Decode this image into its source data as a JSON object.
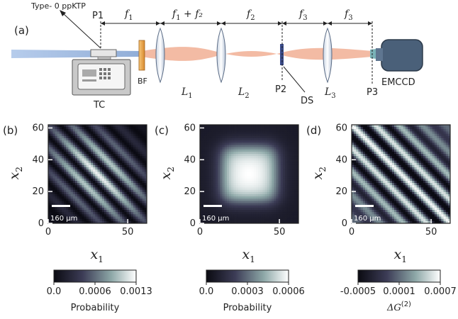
{
  "panel_a": {
    "tag": "(a)",
    "crystal_label": "Type- 0 ppKTP",
    "tc_label": "TC",
    "bf_label": "BF",
    "lens_labels": [
      "L",
      "L",
      "L"
    ],
    "lens_subs": [
      "1",
      "2",
      "3"
    ],
    "plane_labels": [
      "P1",
      "P2",
      "P3"
    ],
    "ds_label": "DS",
    "camera_label": "EMCCD",
    "distances": [
      {
        "main": "f",
        "sub": "1",
        "tail": ""
      },
      {
        "main": "f",
        "sub": "1",
        "tail": " + f₂"
      },
      {
        "main": "f",
        "sub": "2",
        "tail": ""
      },
      {
        "main": "f",
        "sub": "3",
        "tail": ""
      },
      {
        "main": "f",
        "sub": "3",
        "tail": ""
      }
    ],
    "colors": {
      "pump": "#8fb0dc",
      "spdc": "#f2b49a",
      "camera": "#4a6079",
      "filter": "#e8a24a"
    }
  },
  "panels": [
    {
      "tag": "(b)",
      "pattern": "anti",
      "xlabel": "x",
      "xlabel_sub": "1",
      "ylabel": "x",
      "ylabel_sub": "2",
      "xticks": [
        "0",
        "50"
      ],
      "yticks": [
        "0",
        "20",
        "40",
        "60"
      ],
      "scale_label": "160 μm",
      "colorbar": {
        "ticks": [
          "0.0",
          "0.0006",
          "0.0013"
        ],
        "label": "Probability",
        "label_sup": "",
        "colormap": "bone"
      }
    },
    {
      "tag": "(c)",
      "pattern": "blob",
      "xlabel": "x",
      "xlabel_sub": "1",
      "ylabel": "x",
      "ylabel_sub": "2",
      "xticks": [
        "0",
        "50"
      ],
      "yticks": [
        "0",
        "20",
        "40",
        "60"
      ],
      "scale_label": "160 μm",
      "colorbar": {
        "ticks": [
          "0.0",
          "0.0003",
          "0.0006"
        ],
        "label": "Probability",
        "label_sup": "",
        "colormap": "bone"
      }
    },
    {
      "tag": "(d)",
      "pattern": "diff",
      "xlabel": "x",
      "xlabel_sub": "1",
      "ylabel": "x",
      "ylabel_sub": "2",
      "xticks": [
        "0",
        "50"
      ],
      "yticks": [
        "0",
        "20",
        "40",
        "60"
      ],
      "scale_label": "160 μm",
      "colorbar": {
        "ticks": [
          "-0.0005",
          "0.0001",
          "0.0007"
        ],
        "label": "ΔG",
        "label_sup": "(2)",
        "colormap": "bone"
      }
    }
  ]
}
